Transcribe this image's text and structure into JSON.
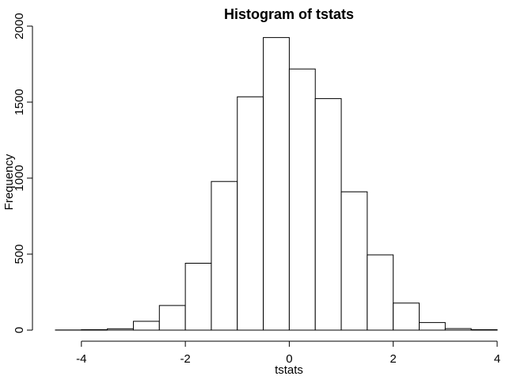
{
  "chart_data": {
    "type": "bar",
    "title": "Histogram of tstats",
    "xlabel": "tstats",
    "ylabel": "Frequency",
    "bin_edges": [
      -4.5,
      -4.0,
      -3.5,
      -3.0,
      -2.5,
      -2.0,
      -1.5,
      -1.0,
      -0.5,
      0.0,
      0.5,
      1.0,
      1.5,
      2.0,
      2.5,
      3.0,
      3.5,
      4.0
    ],
    "values": [
      1,
      3,
      9,
      58,
      162,
      440,
      978,
      1535,
      1925,
      1718,
      1523,
      910,
      495,
      178,
      50,
      10,
      3
    ],
    "xlim": [
      -4.5,
      4.0
    ],
    "ylim": [
      0,
      2000
    ],
    "xticks": [
      -4,
      -2,
      0,
      2,
      4
    ],
    "yticks": [
      0,
      500,
      1000,
      1500,
      2000
    ],
    "bar_fill": "#ffffff",
    "bar_stroke": "#000000",
    "grid": false,
    "legend": "none"
  }
}
